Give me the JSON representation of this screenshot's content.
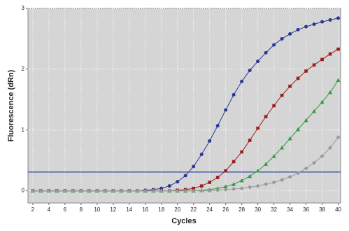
{
  "chart_data": {
    "type": "line",
    "x_label": "Cycles",
    "y_label": "Fluorescence (dRn)",
    "x": [
      2,
      3,
      4,
      5,
      6,
      7,
      8,
      9,
      10,
      11,
      12,
      13,
      14,
      15,
      16,
      17,
      18,
      19,
      20,
      21,
      22,
      23,
      24,
      25,
      26,
      27,
      28,
      29,
      30,
      31,
      32,
      33,
      34,
      35,
      36,
      37,
      38,
      39,
      40
    ],
    "series": [
      {
        "color": "#2a3794",
        "marker": "circle",
        "values": [
          0,
          0,
          0,
          0,
          0,
          0,
          0,
          0,
          0,
          0,
          0,
          0,
          0,
          0,
          0.01,
          0.02,
          0.04,
          0.08,
          0.15,
          0.25,
          0.4,
          0.6,
          0.82,
          1.07,
          1.33,
          1.58,
          1.8,
          1.98,
          2.13,
          2.27,
          2.4,
          2.5,
          2.58,
          2.65,
          2.7,
          2.74,
          2.78,
          2.81,
          2.84
        ]
      },
      {
        "color": "#9e1b1b",
        "marker": "square",
        "values": [
          0,
          0,
          0,
          0,
          0,
          0,
          0,
          0,
          0,
          0,
          0,
          0,
          0,
          0,
          0,
          0,
          0,
          0,
          0.01,
          0.02,
          0.04,
          0.08,
          0.14,
          0.22,
          0.33,
          0.48,
          0.64,
          0.83,
          1.03,
          1.22,
          1.4,
          1.57,
          1.72,
          1.85,
          1.97,
          2.07,
          2.16,
          2.25,
          2.33
        ]
      },
      {
        "color": "#2e9a3c",
        "marker": "triangle",
        "values": [
          0,
          0,
          0,
          0,
          0,
          0,
          0,
          0,
          0,
          0,
          0,
          0,
          0,
          0,
          0,
          0,
          0,
          0,
          0,
          0,
          0,
          0.01,
          0.02,
          0.04,
          0.07,
          0.11,
          0.17,
          0.24,
          0.33,
          0.44,
          0.57,
          0.71,
          0.86,
          1.01,
          1.16,
          1.31,
          1.46,
          1.62,
          1.82
        ]
      },
      {
        "color": "#9a9a9a",
        "marker": "diamond",
        "values": [
          0,
          0,
          0,
          0,
          0,
          0,
          0,
          0,
          0,
          0,
          0,
          0,
          0,
          0,
          0,
          0,
          0,
          0,
          0,
          0,
          0,
          0,
          0,
          0.01,
          0.02,
          0.03,
          0.04,
          0.06,
          0.08,
          0.11,
          0.14,
          0.18,
          0.23,
          0.29,
          0.37,
          0.46,
          0.57,
          0.71,
          0.88
        ]
      }
    ],
    "threshold": 0.31,
    "threshold_color": "#3a57a6",
    "xlim": [
      1.4,
      40.3
    ],
    "ylim": [
      -0.2,
      3
    ],
    "xticks": [
      2,
      4,
      6,
      8,
      10,
      12,
      14,
      16,
      18,
      20,
      22,
      24,
      26,
      28,
      30,
      32,
      34,
      36,
      38,
      40
    ],
    "yticks": [
      0,
      1,
      2,
      3
    ],
    "grid": true
  }
}
